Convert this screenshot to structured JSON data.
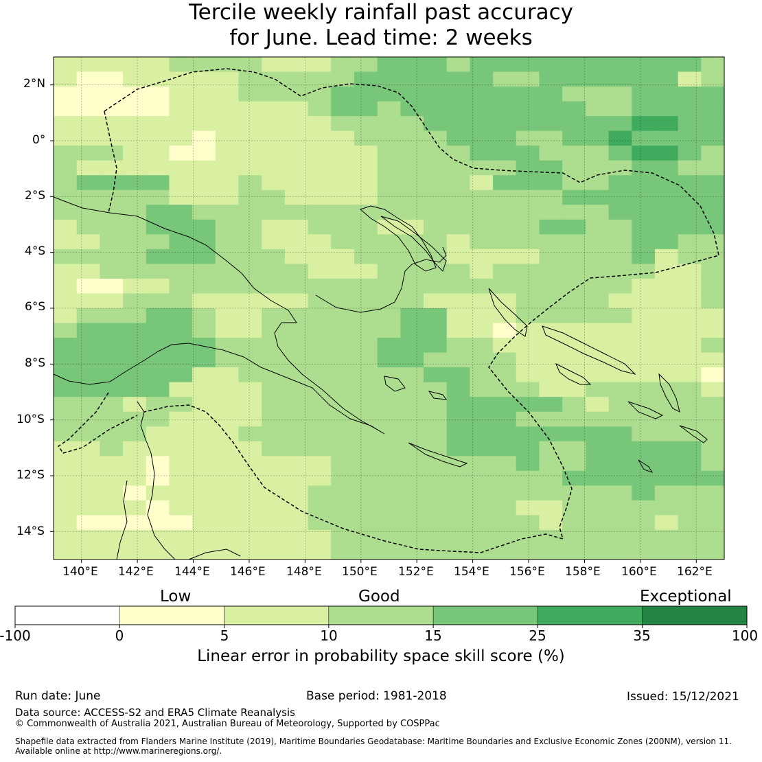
{
  "title_line1": "Tercile weekly rainfall past accuracy",
  "title_line2": "for June. Lead time: 2 weeks",
  "map": {
    "lon_ticks": [
      "140°E",
      "142°E",
      "144°E",
      "146°E",
      "148°E",
      "150°E",
      "152°E",
      "154°E",
      "156°E",
      "158°E",
      "160°E",
      "162°E"
    ],
    "lat_ticks": [
      "2°N",
      "0°",
      "2°S",
      "4°S",
      "6°S",
      "8°S",
      "10°S",
      "12°S",
      "14°S"
    ],
    "lon_range": [
      139,
      163
    ],
    "lat_range": [
      -15,
      3
    ],
    "lon_tick_values": [
      140,
      142,
      144,
      146,
      148,
      150,
      152,
      154,
      156,
      158,
      160,
      162
    ],
    "lat_tick_values": [
      2,
      0,
      -2,
      -4,
      -6,
      -8,
      -10,
      -12,
      -14
    ],
    "variable": "LEPS skill score (%)",
    "grid_resolution_deg": 0.8,
    "grid": [
      "BBBBBCCCCBBBCCDDDCDDDDDDDDDDC",
      "BAABBBBBCCCCCDDDDDDCCDDDDDDBC",
      "AAAAABBBCCCCDDDDDDDDDDCCCDDDD",
      "AAAAABBBBBBCDDCDDDDDDDDCCDDDD",
      "BBBBBBBBBBBBCCCCDDDDDDDDDEEDD",
      "BBBBBBABBBBBBCCCCDDDCCDDEDDDD",
      "CCCBBAABBBBBBBCCCCDDDCCCDEEDC",
      "CBBBBBBBBBBBBBCCCCCCDDCCCDDCC",
      "CDDDDBBBCBBBBBCCCCBDDDCCDDDDD",
      "CCCCCBBBCCBBBBCCCCCCCCDDDDDDD",
      "CCCCDDCCCCCCCCCCCCCCCCCCDDDDD",
      "BCCCDDDCCBBCCCBBCCCCCDDCCDDDD",
      "BBCCCDDCCBBBCCCCCBCCCCCCCDDCC",
      "CCCCDDDCCCBBBCCCCBBBBCCCCDBCC",
      "BBCCCCCCCCCBBBCCCCBCCCCCCCBBC",
      "BAABBCCCCCCCCCCCCCCCCCCCCBBBC",
      "BBBCCCBBBBBCCCCCBBBBCCCCBBBBC",
      "BCCCDDCBBCCCCCCDDBBBCCCCCBBBB",
      "CDDDDDCBBCCCCCCDDBBABBBBBBBBB",
      "DDDDDDDCCCCCCCDDDCCBBBBBBBBBC",
      "DDDDDDDCCCCCCCDDCCCCBBBBBBBBB",
      "DDDDDDBBCCCCCCCCDDCCBBBBBBBBA",
      "DDDDDBBBBCCCCCCCCDCCCBBCCCCCB",
      "CCCBCCBBBCCCCCCCCDDDDDCBCCCCC",
      "CCCCCBBBBCCCCCCCCDDDCCCCCCCCC",
      "CCCCBBBBCCCCCCCCCDDDDDDDDCCCC",
      "BBCBBBBBBCCCCCCCCDDDDCCDDDDDC",
      "BBBBABBBBBBBCCCCCCCCDCCDDDDDC",
      "BBBBABBBBBBBCCCCCCCCCCDDDDDDD",
      "BBBABBBBBBBCCCCCCCCCCCCCCDCCC",
      "BBBBABBBBBBCCCCCCCCCBBCCCCCCC",
      "BAAAAABBBBBCCCCCCCCCCBCCCCBCC",
      "BBBBBBBBBBBBCCCCCCCCCCCCCCCCC",
      "BBBBBBBBBBBBCCCCCCCCCCCCCCCCC"
    ],
    "grid_legend": {
      "A": "0-5",
      "B": "5-10",
      "C": "10-15",
      "D": "15-25",
      "E": "25-35"
    }
  },
  "colorbar": {
    "category_low": "Low",
    "category_good": "Good",
    "category_exceptional": "Exceptional",
    "ticks": [
      "-100",
      "0",
      "5",
      "10",
      "15",
      "25",
      "35",
      "100"
    ],
    "colors": [
      "#ffffff",
      "#ffffcc",
      "#d9f0a3",
      "#addd8e",
      "#78c679",
      "#41ab5d",
      "#238443"
    ],
    "title": "Linear error in probability space skill score (%)"
  },
  "footer": {
    "run_date": "Run date: June",
    "base_period": "Base period: 1981-2018",
    "issued": "Issued: 15/12/2021",
    "data_source": "Data source: ACCESS-S2 and ERA5 Climate Reanalysis",
    "copyright": "© Commonwealth of Australia 2021, Australian Bureau of Meteorology, Supported by COSPPac",
    "shapefile_line1": "Shapefile data extracted from Flanders Marine Institute (2019), Maritime Boundaries Geodatabase: Maritime Boundaries and Exclusive Economic Zones (200NM), version 11.",
    "shapefile_line2": "Available online at http://www.marineregions.org/."
  }
}
